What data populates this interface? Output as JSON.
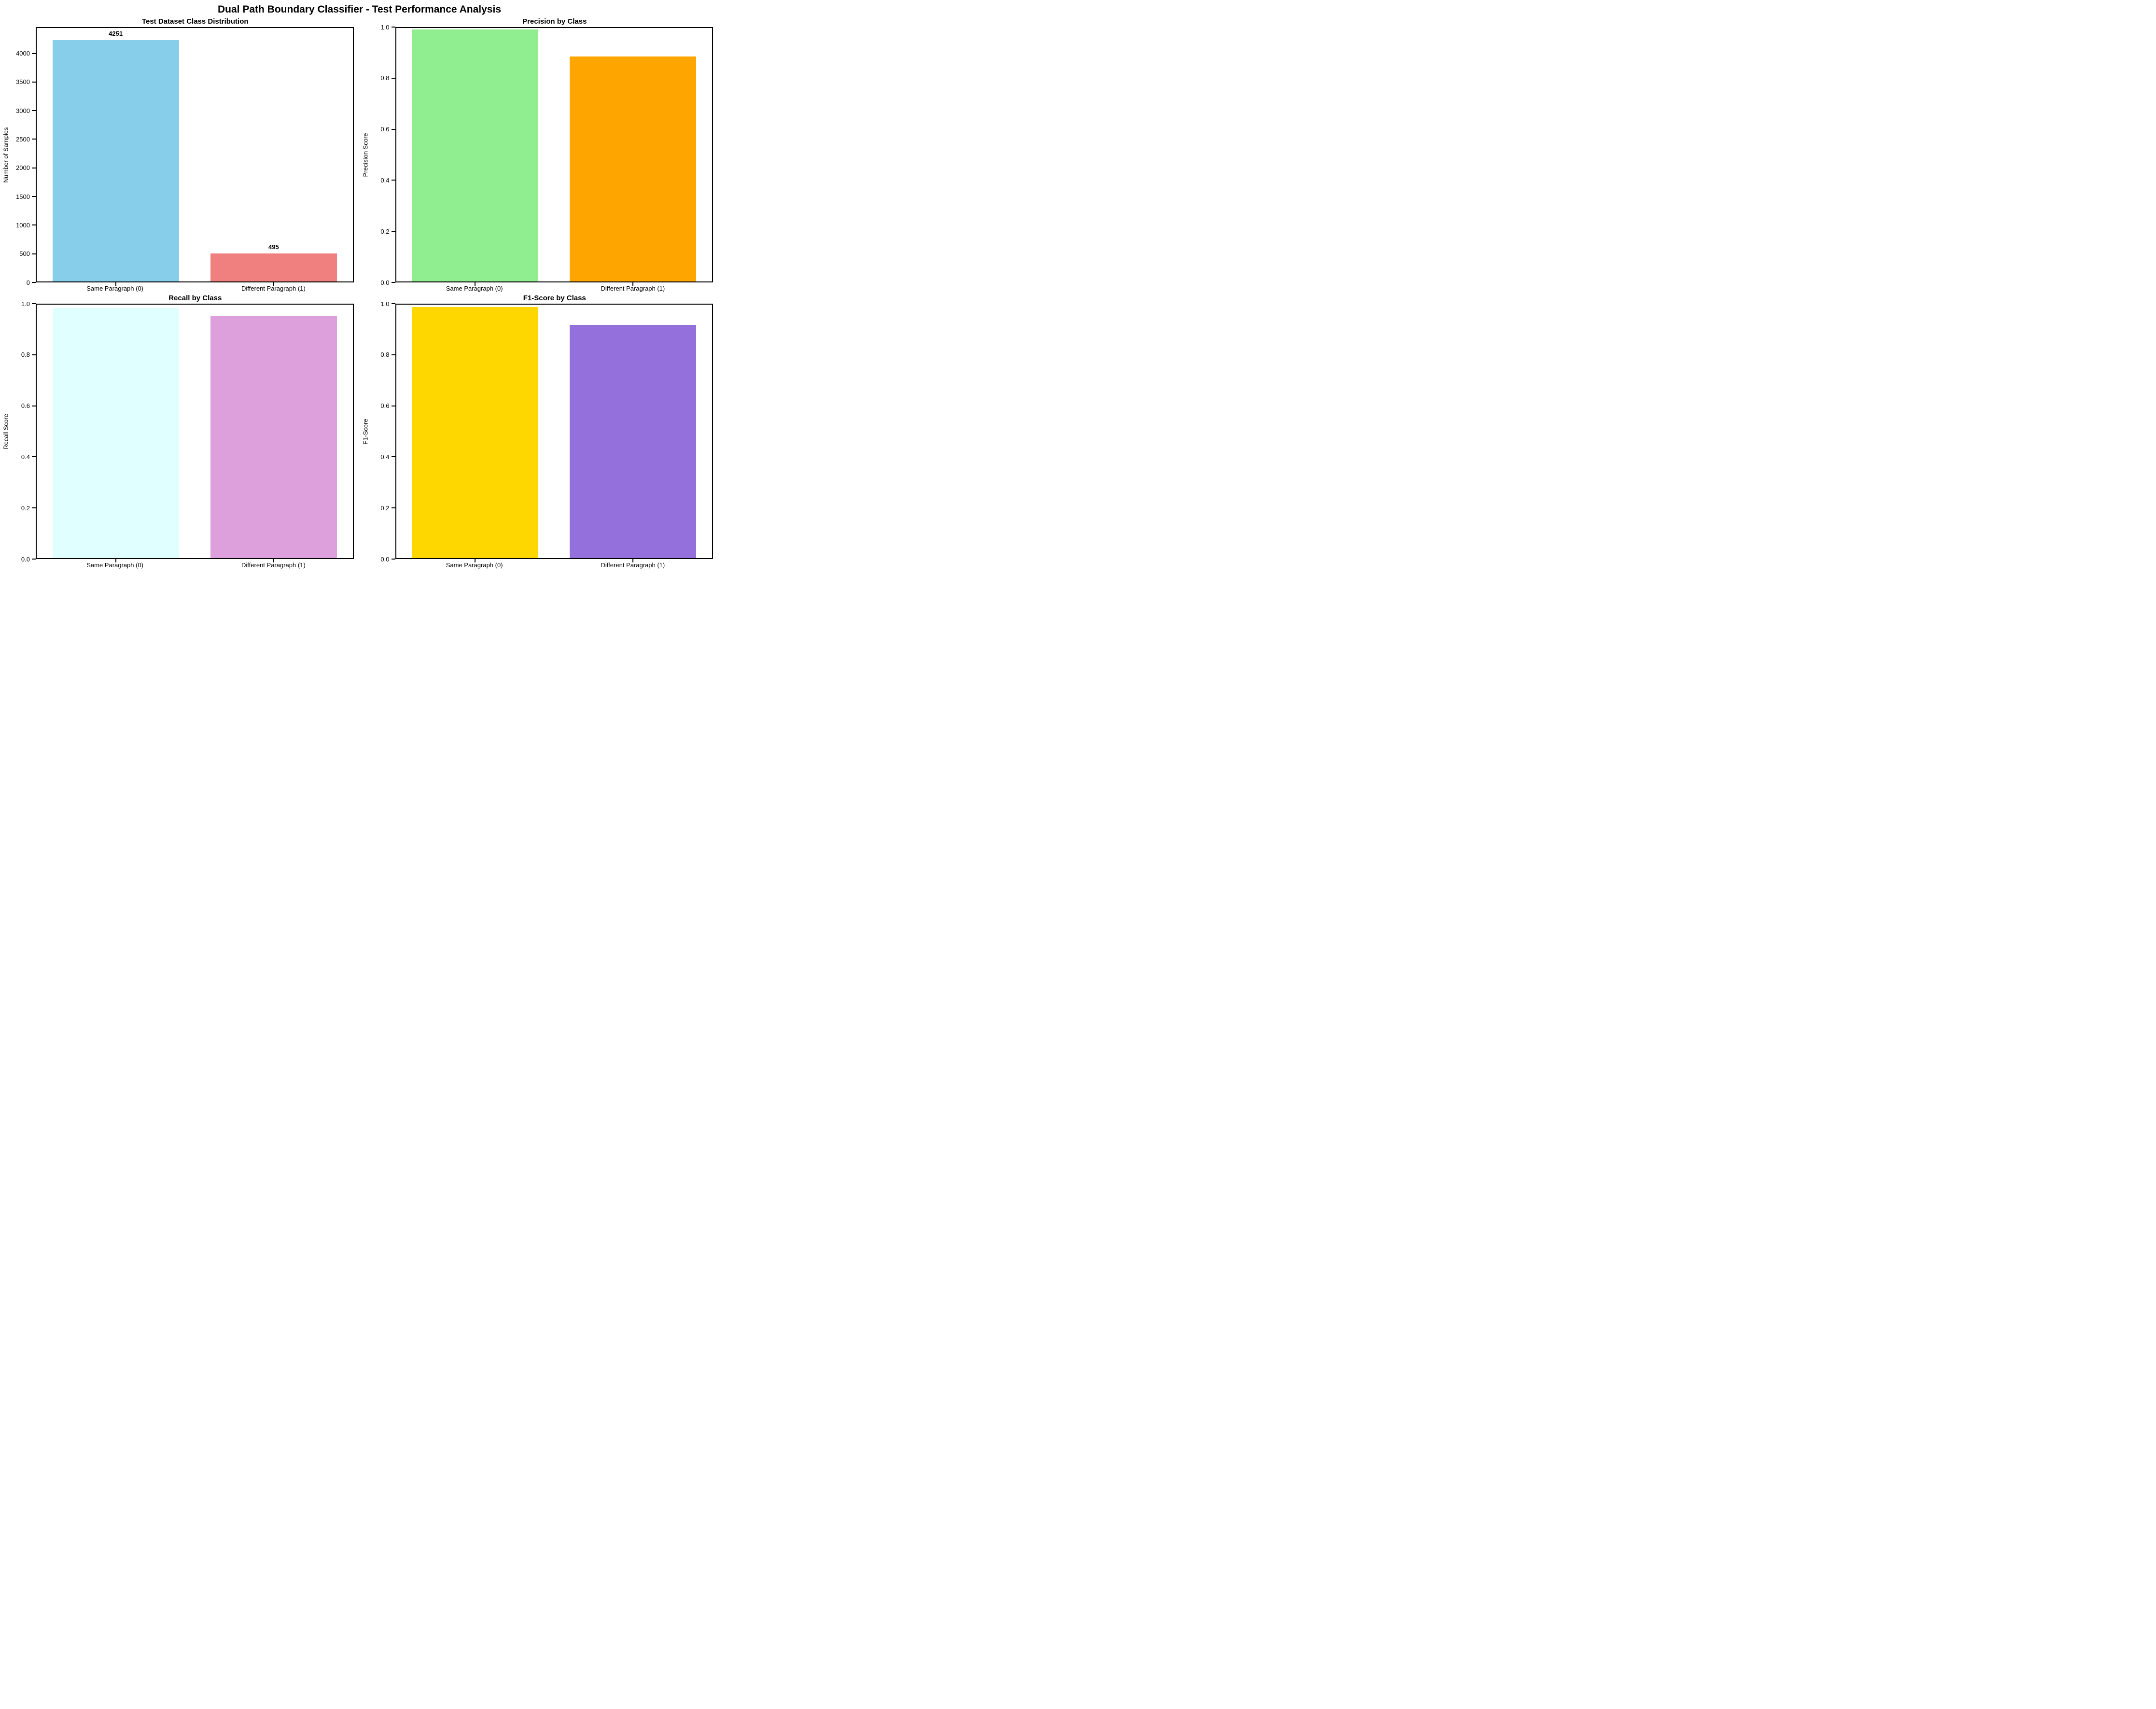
{
  "figure": {
    "title": "Dual Path Boundary Classifier - Test Performance Analysis",
    "background_color": "#ffffff",
    "text_color": "#000000"
  },
  "chart_data": [
    {
      "id": "class-distribution",
      "type": "bar",
      "title": "Test Dataset Class Distribution",
      "xlabel": "",
      "ylabel": "Number of Samples",
      "categories": [
        "Same Paragraph (0)",
        "Different Paragraph (1)"
      ],
      "values": [
        4251,
        495
      ],
      "bar_labels": [
        "4251",
        "495"
      ],
      "bar_colors": [
        "#87CEEB",
        "#F08080"
      ],
      "ylim": [
        0,
        4460
      ],
      "yticks": [
        0,
        500,
        1000,
        1500,
        2000,
        2500,
        3000,
        3500,
        4000
      ],
      "ytick_labels": [
        "0",
        "500",
        "1000",
        "1500",
        "2000",
        "2500",
        "3000",
        "3500",
        "4000"
      ],
      "grid": false,
      "legend": "none"
    },
    {
      "id": "precision-by-class",
      "type": "bar",
      "title": "Precision by Class",
      "xlabel": "",
      "ylabel": "Precision Score",
      "categories": [
        "Same Paragraph (0)",
        "Different Paragraph (1)"
      ],
      "values": [
        0.994,
        0.888
      ],
      "bar_colors": [
        "#90EE90",
        "#FFA500"
      ],
      "ylim": [
        0,
        1.0
      ],
      "yticks": [
        0.0,
        0.2,
        0.4,
        0.6,
        0.8,
        1.0
      ],
      "ytick_labels": [
        "0.0",
        "0.2",
        "0.4",
        "0.6",
        "0.8",
        "1.0"
      ],
      "grid": false,
      "legend": "none"
    },
    {
      "id": "recall-by-class",
      "type": "bar",
      "title": "Recall by Class",
      "xlabel": "",
      "ylabel": "Recall Score",
      "categories": [
        "Same Paragraph (0)",
        "Different Paragraph (1)"
      ],
      "values": [
        0.986,
        0.956
      ],
      "bar_colors": [
        "#E0FFFF",
        "#DDA0DD"
      ],
      "ylim": [
        0,
        1.0
      ],
      "yticks": [
        0.0,
        0.2,
        0.4,
        0.6,
        0.8,
        1.0
      ],
      "ytick_labels": [
        "0.0",
        "0.2",
        "0.4",
        "0.6",
        "0.8",
        "1.0"
      ],
      "grid": false,
      "legend": "none"
    },
    {
      "id": "f1-score-by-class",
      "type": "bar",
      "title": "F1-Score by Class",
      "xlabel": "",
      "ylabel": "F1-Score",
      "categories": [
        "Same Paragraph (0)",
        "Different Paragraph (1)"
      ],
      "values": [
        0.99,
        0.92
      ],
      "bar_colors": [
        "#FFD700",
        "#9370DB"
      ],
      "ylim": [
        0,
        1.0
      ],
      "yticks": [
        0.0,
        0.2,
        0.4,
        0.6,
        0.8,
        1.0
      ],
      "ytick_labels": [
        "0.0",
        "0.2",
        "0.4",
        "0.6",
        "0.8",
        "1.0"
      ],
      "grid": false,
      "legend": "none"
    }
  ]
}
